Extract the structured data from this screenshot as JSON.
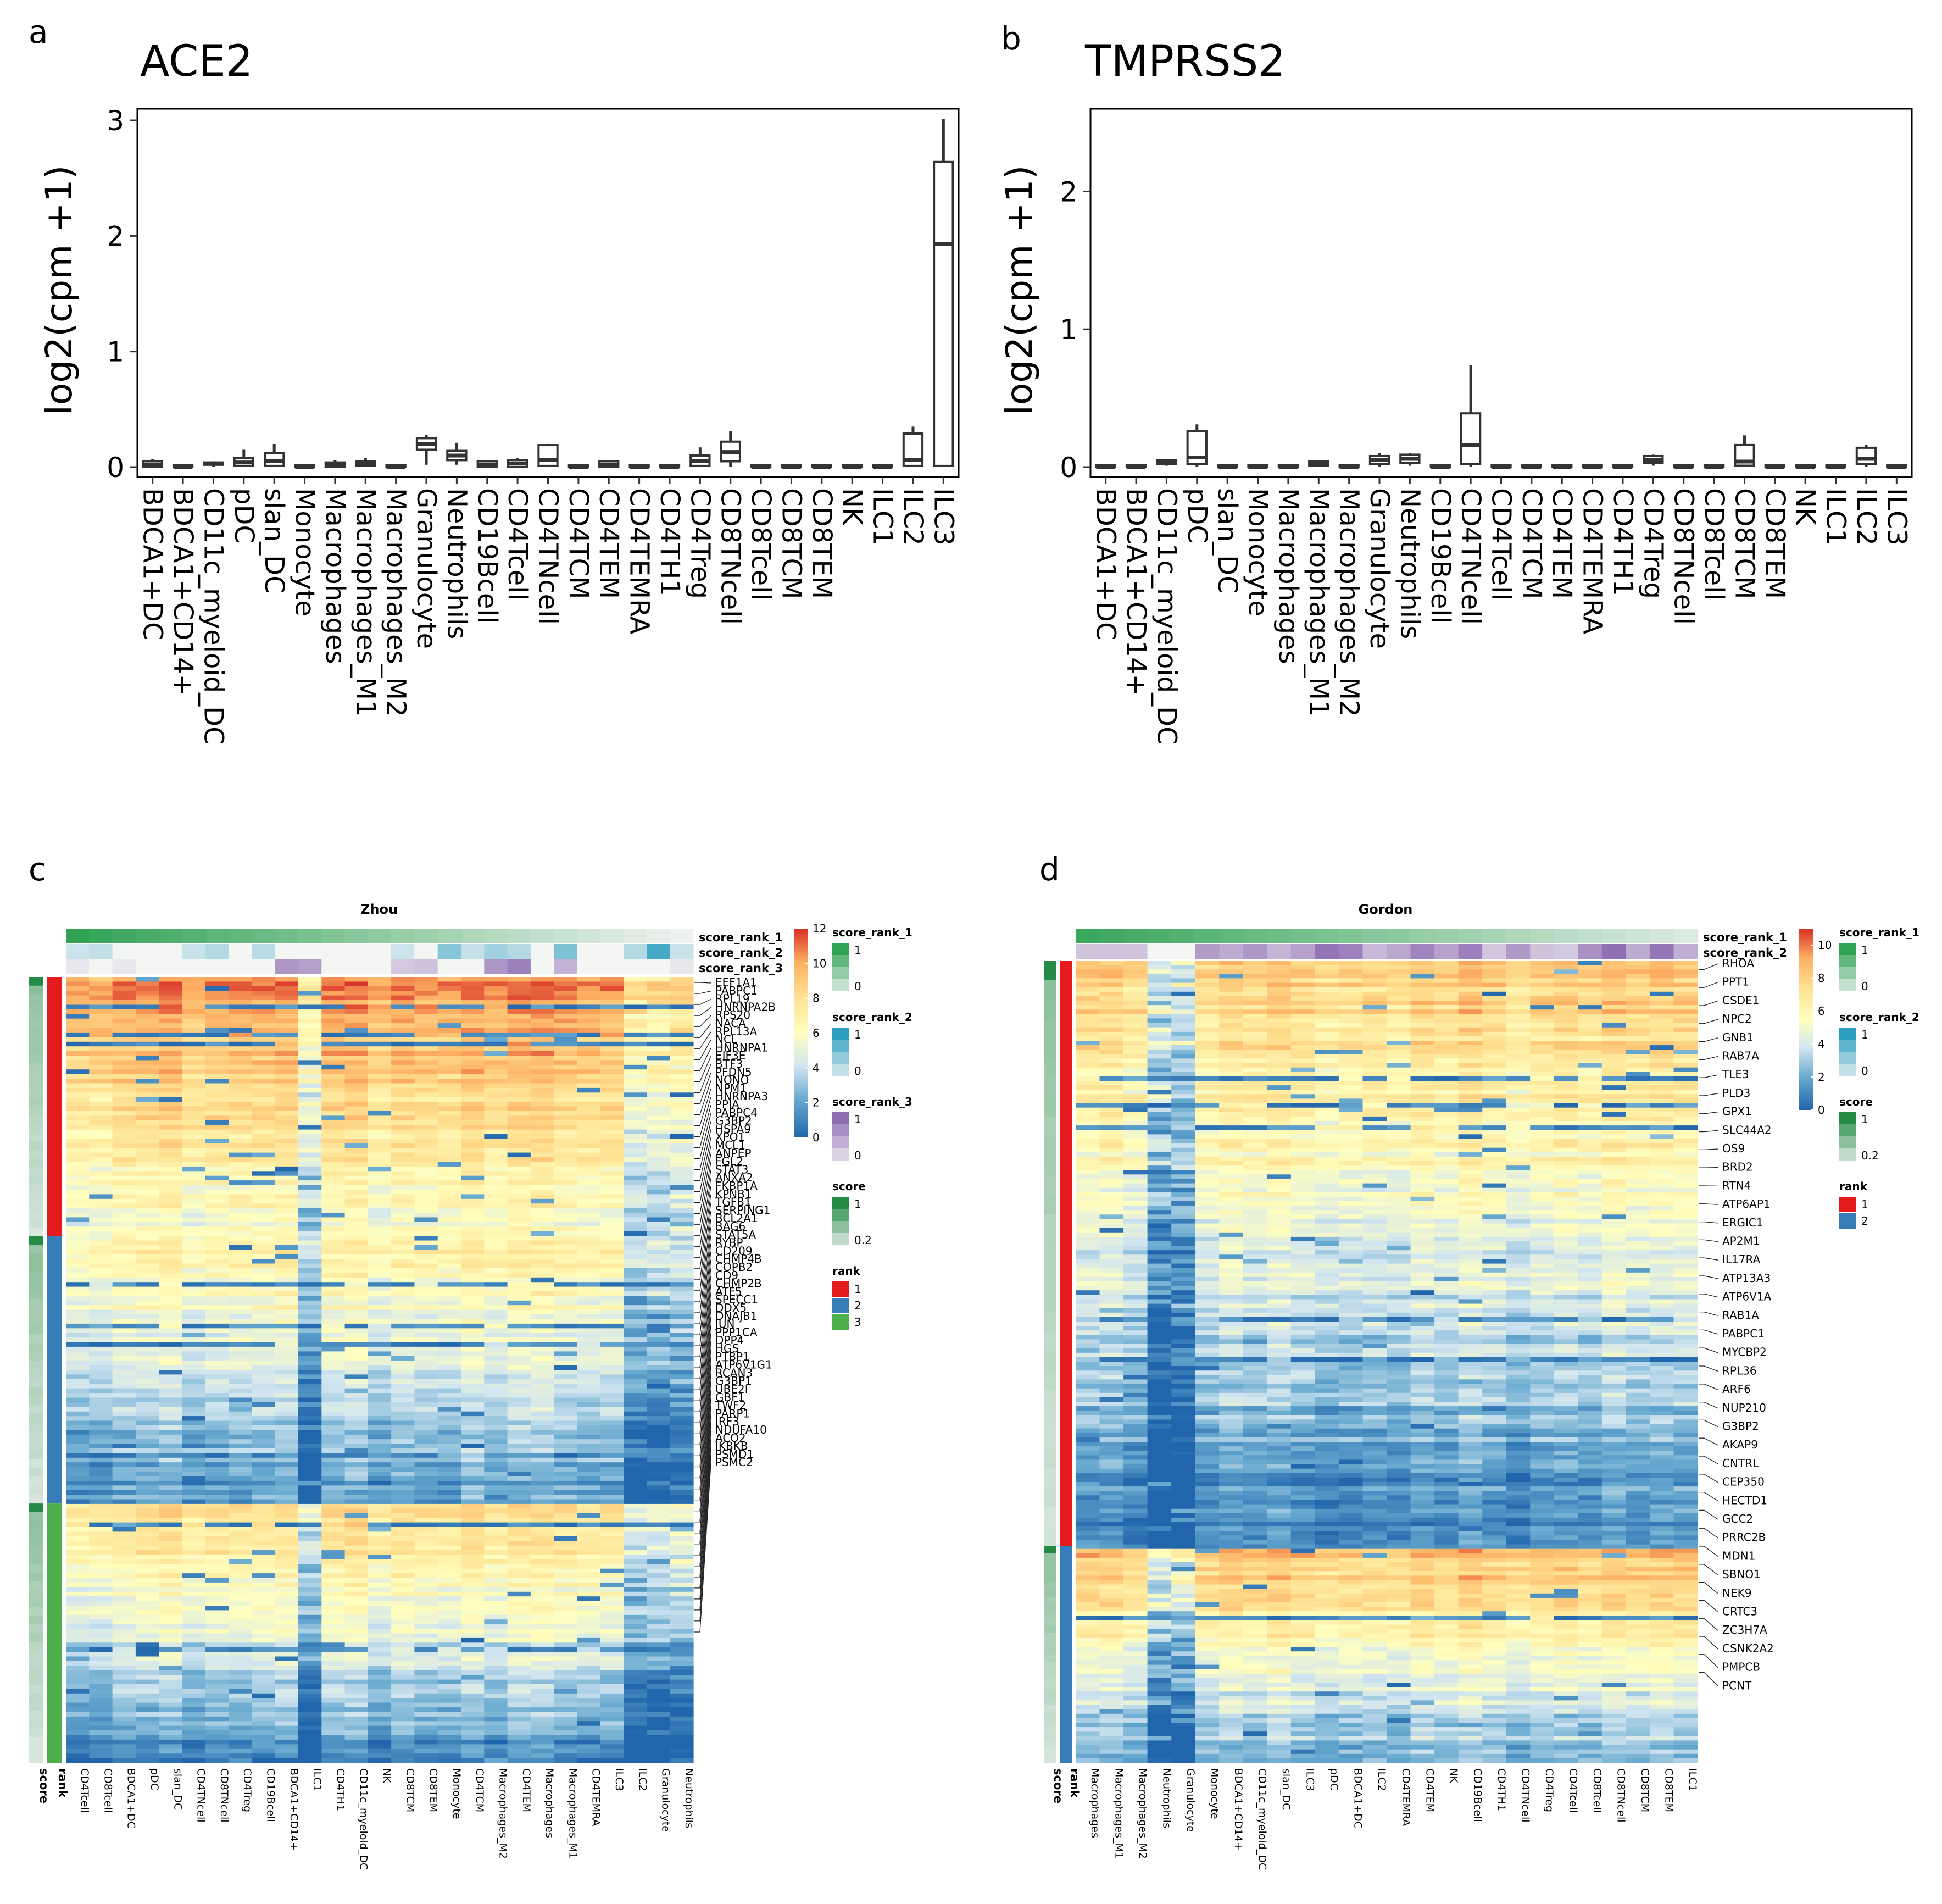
{
  "chart_data": [
    {
      "panel": "a",
      "type": "box",
      "title": "ACE2",
      "ylabel": "log2(cpm +1)",
      "ylim": [
        0,
        3.1
      ],
      "yticks": [
        0,
        1,
        2,
        3
      ],
      "grid": false,
      "categories": [
        "BDCA1+DC",
        "BDCA1+CD14+",
        "CD11c_myeloid_DC",
        "pDC",
        "slan_DC",
        "Monocyte",
        "Macrophages",
        "Macrophages_M1",
        "Macrophages_M2",
        "Granulocyte",
        "Neutrophils",
        "CD19Bcell",
        "CD4Tcell",
        "CD4TNcell",
        "CD4TCM",
        "CD4TEM",
        "CD4TEMRA",
        "CD4TH1",
        "CD4Treg",
        "CD8TNcell",
        "CD8Tcell",
        "CD8TCM",
        "CD8TEM",
        "NK",
        "ILC1",
        "ILC2",
        "ILC3"
      ],
      "boxes": [
        {
          "min": 0,
          "q1": 0.0,
          "median": 0.02,
          "q3": 0.05,
          "max": 0.07
        },
        {
          "min": 0,
          "q1": 0.0,
          "median": 0.0,
          "q3": 0.01,
          "max": 0.02
        },
        {
          "min": 0,
          "q1": 0.02,
          "median": 0.03,
          "q3": 0.04,
          "max": 0.05
        },
        {
          "min": 0,
          "q1": 0.01,
          "median": 0.04,
          "q3": 0.08,
          "max": 0.15
        },
        {
          "min": 0,
          "q1": 0.01,
          "median": 0.05,
          "q3": 0.12,
          "max": 0.2
        },
        {
          "min": 0,
          "q1": 0.0,
          "median": 0.0,
          "q3": 0.01,
          "max": 0.01
        },
        {
          "min": 0,
          "q1": 0.0,
          "median": 0.02,
          "q3": 0.04,
          "max": 0.06
        },
        {
          "min": 0,
          "q1": 0.01,
          "median": 0.03,
          "q3": 0.05,
          "max": 0.08
        },
        {
          "min": 0,
          "q1": 0.0,
          "median": 0.0,
          "q3": 0.01,
          "max": 0.01
        },
        {
          "min": 0.02,
          "q1": 0.15,
          "median": 0.2,
          "q3": 0.25,
          "max": 0.28
        },
        {
          "min": 0.02,
          "q1": 0.06,
          "median": 0.1,
          "q3": 0.14,
          "max": 0.21
        },
        {
          "min": 0,
          "q1": 0.0,
          "median": 0.02,
          "q3": 0.05,
          "max": 0.06
        },
        {
          "min": 0,
          "q1": 0.0,
          "median": 0.03,
          "q3": 0.06,
          "max": 0.08
        },
        {
          "min": 0,
          "q1": 0.01,
          "median": 0.06,
          "q3": 0.19,
          "max": 0.2
        },
        {
          "min": 0,
          "q1": 0.0,
          "median": 0.0,
          "q3": 0.01,
          "max": 0.02
        },
        {
          "min": 0,
          "q1": 0.0,
          "median": 0.02,
          "q3": 0.05,
          "max": 0.06
        },
        {
          "min": 0,
          "q1": 0.0,
          "median": 0.0,
          "q3": 0.01,
          "max": 0.01
        },
        {
          "min": 0,
          "q1": 0.0,
          "median": 0.0,
          "q3": 0.01,
          "max": 0.01
        },
        {
          "min": 0,
          "q1": 0.01,
          "median": 0.05,
          "q3": 0.1,
          "max": 0.17
        },
        {
          "min": 0,
          "q1": 0.05,
          "median": 0.13,
          "q3": 0.22,
          "max": 0.31
        },
        {
          "min": 0,
          "q1": 0.0,
          "median": 0.0,
          "q3": 0.01,
          "max": 0.01
        },
        {
          "min": 0,
          "q1": 0.0,
          "median": 0.0,
          "q3": 0.01,
          "max": 0.01
        },
        {
          "min": 0,
          "q1": 0.0,
          "median": 0.0,
          "q3": 0.01,
          "max": 0.01
        },
        {
          "min": 0,
          "q1": 0.0,
          "median": 0.0,
          "q3": 0.01,
          "max": 0.01
        },
        {
          "min": 0,
          "q1": 0.0,
          "median": 0.0,
          "q3": 0.01,
          "max": 0.01
        },
        {
          "min": 0,
          "q1": 0.01,
          "median": 0.06,
          "q3": 0.29,
          "max": 0.35
        },
        {
          "min": 0,
          "q1": 0.01,
          "median": 1.93,
          "q3": 2.64,
          "max": 3.01
        }
      ]
    },
    {
      "panel": "b",
      "type": "box",
      "title": "TMPRSS2",
      "ylabel": "log2(cpm +1)",
      "ylim": [
        0,
        2.6
      ],
      "yticks": [
        0,
        1,
        2
      ],
      "grid": false,
      "categories": [
        "BDCA1+DC",
        "BDCA1+CD14+",
        "CD11c_myeloid_DC",
        "pDC",
        "slan_DC",
        "Monocyte",
        "Macrophages",
        "Macrophages_M1",
        "Macrophages_M2",
        "Granulocyte",
        "Neutrophils",
        "CD19Bcell",
        "CD4TNcell",
        "CD4Tcell",
        "CD4TCM",
        "CD4TEM",
        "CD4TEMRA",
        "CD4TH1",
        "CD4Treg",
        "CD8TNcell",
        "CD8Tcell",
        "CD8TCM",
        "CD8TEM",
        "NK",
        "ILC1",
        "ILC2",
        "ILC3"
      ],
      "boxes": [
        {
          "min": 0,
          "q1": 0.0,
          "median": 0.0,
          "q3": 0.01,
          "max": 0.01
        },
        {
          "min": 0,
          "q1": 0.0,
          "median": 0.0,
          "q3": 0.01,
          "max": 0.01
        },
        {
          "min": 0.01,
          "q1": 0.02,
          "median": 0.03,
          "q3": 0.05,
          "max": 0.06
        },
        {
          "min": 0,
          "q1": 0.02,
          "median": 0.07,
          "q3": 0.26,
          "max": 0.31
        },
        {
          "min": 0,
          "q1": 0.0,
          "median": 0.0,
          "q3": 0.01,
          "max": 0.01
        },
        {
          "min": 0,
          "q1": 0.0,
          "median": 0.0,
          "q3": 0.01,
          "max": 0.01
        },
        {
          "min": 0,
          "q1": 0.0,
          "median": 0.0,
          "q3": 0.01,
          "max": 0.01
        },
        {
          "min": 0,
          "q1": 0.01,
          "median": 0.02,
          "q3": 0.04,
          "max": 0.05
        },
        {
          "min": 0,
          "q1": 0.0,
          "median": 0.0,
          "q3": 0.01,
          "max": 0.01
        },
        {
          "min": 0,
          "q1": 0.02,
          "median": 0.05,
          "q3": 0.08,
          "max": 0.1
        },
        {
          "min": 0.01,
          "q1": 0.03,
          "median": 0.06,
          "q3": 0.09,
          "max": 0.1
        },
        {
          "min": 0,
          "q1": 0.0,
          "median": 0.0,
          "q3": 0.01,
          "max": 0.01
        },
        {
          "min": 0,
          "q1": 0.02,
          "median": 0.16,
          "q3": 0.39,
          "max": 0.74
        },
        {
          "min": 0,
          "q1": 0.0,
          "median": 0.0,
          "q3": 0.01,
          "max": 0.01
        },
        {
          "min": 0,
          "q1": 0.0,
          "median": 0.0,
          "q3": 0.01,
          "max": 0.01
        },
        {
          "min": 0,
          "q1": 0.0,
          "median": 0.0,
          "q3": 0.01,
          "max": 0.01
        },
        {
          "min": 0,
          "q1": 0.0,
          "median": 0.0,
          "q3": 0.01,
          "max": 0.01
        },
        {
          "min": 0,
          "q1": 0.0,
          "median": 0.0,
          "q3": 0.01,
          "max": 0.01
        },
        {
          "min": 0.01,
          "q1": 0.03,
          "median": 0.05,
          "q3": 0.08,
          "max": 0.09
        },
        {
          "min": 0,
          "q1": 0.0,
          "median": 0.0,
          "q3": 0.01,
          "max": 0.01
        },
        {
          "min": 0,
          "q1": 0.0,
          "median": 0.0,
          "q3": 0.01,
          "max": 0.01
        },
        {
          "min": 0,
          "q1": 0.01,
          "median": 0.04,
          "q3": 0.16,
          "max": 0.23
        },
        {
          "min": 0,
          "q1": 0.0,
          "median": 0.0,
          "q3": 0.01,
          "max": 0.01
        },
        {
          "min": 0,
          "q1": 0.0,
          "median": 0.0,
          "q3": 0.01,
          "max": 0.01
        },
        {
          "min": 0,
          "q1": 0.0,
          "median": 0.0,
          "q3": 0.01,
          "max": 0.01
        },
        {
          "min": 0,
          "q1": 0.02,
          "median": 0.06,
          "q3": 0.14,
          "max": 0.16
        },
        {
          "min": 0,
          "q1": 0.0,
          "median": 0.0,
          "q3": 0.01,
          "max": 0.01
        }
      ]
    },
    {
      "panel": "c",
      "type": "heatmap",
      "title": "Zhou",
      "columns": [
        "CD4Tcell",
        "CD8Tcell",
        "BDCA1+DC",
        "pDC",
        "slan_DC",
        "CD4TNcell",
        "CD8TNcell",
        "CD4Treg",
        "CD19Bcell",
        "BDCA1+CD14+",
        "ILC1",
        "CD4TH1",
        "CD11c_myeloid_DC",
        "NK",
        "CD8TCM",
        "CD8TEM",
        "Monocyte",
        "CD4TCM",
        "Macrophages_M2",
        "CD4TEM",
        "Macrophages",
        "Macrophages_M1",
        "CD4TEMRA",
        "ILC3",
        "ILC2",
        "Granulocyte",
        "Neutrophils"
      ],
      "annotation_rows": [
        "score_rank_1",
        "score_rank_2",
        "score_rank_3"
      ],
      "row_annotations": [
        "score",
        "rank"
      ],
      "genes": [
        "EEF1A1",
        "PABPC1",
        "RPL19",
        "HNRNPA2B",
        "RPS20",
        "NACA",
        "RPL13A",
        "NCL",
        "HNRNPA1",
        "EIF3E",
        "BTF3",
        "PFDN5",
        "NONO",
        "NPM1",
        "HNRNPA3",
        "PPIA",
        "PABPC4",
        "G3BP2",
        "HSPA9",
        "XPO1",
        "MCL1",
        "ANPEP",
        "FGL2",
        "STAT3",
        "ANXA2",
        "FKBP1A",
        "KPNB1",
        "TGFB1",
        "SERPING1",
        "BCL2A1",
        "BAG6",
        "STAT5A",
        "RYBP",
        "CD209",
        "CHMP4B",
        "COPB2",
        "CD9",
        "CHMP2B",
        "ATF5",
        "SPECC1",
        "DDX5",
        "DNAJB1",
        "JUN",
        "PPP1CA",
        "DPP4",
        "HGS",
        "PTBP1",
        "ATP6V1G1",
        "RCAN3",
        "G3BP1",
        "UBE2I",
        "GBF1",
        "TWF2",
        "PARP1",
        "IRF3",
        "NDUFA10",
        "ACO2",
        "IKBKB",
        "PSMD1",
        "PSMC2"
      ],
      "color_scale": {
        "min": 0,
        "max": 12,
        "ticks": [
          0,
          2,
          4,
          6,
          8,
          10,
          12
        ]
      },
      "legends": [
        {
          "title": "score_rank_1",
          "labels": [
            "1",
            "0"
          ]
        },
        {
          "title": "score_rank_2",
          "labels": [
            "1",
            "0"
          ]
        },
        {
          "title": "score_rank_3",
          "labels": [
            "1",
            "0"
          ]
        },
        {
          "title": "score",
          "labels": [
            "1",
            "0.2"
          ]
        },
        {
          "title": "rank",
          "labels": [
            "1",
            "2",
            "3"
          ]
        }
      ]
    },
    {
      "panel": "d",
      "type": "heatmap",
      "title": "Gordon",
      "columns": [
        "Macrophages",
        "Macrophages_M1",
        "Macrophages_M2",
        "Neutrophils",
        "Granulocyte",
        "Monocyte",
        "BDCA1+CD14+",
        "CD11c_myeloid_DC",
        "slan_DC",
        "ILC3",
        "pDC",
        "BDCA1+DC",
        "ILC2",
        "CD4TEMRA",
        "CD4TEM",
        "NK",
        "CD19Bcell",
        "CD4TH1",
        "CD4TNcell",
        "CD4Treg",
        "CD4Tcell",
        "CD8Tcell",
        "CD8TNcell",
        "CD8TCM",
        "CD8TEM",
        "ILC1"
      ],
      "annotation_rows": [
        "score_rank_1",
        "score_rank_2"
      ],
      "row_annotations": [
        "score",
        "rank"
      ],
      "genes": [
        "RHOA",
        "PPT1",
        "CSDE1",
        "NPC2",
        "GNB1",
        "RAB7A",
        "TLE3",
        "PLD3",
        "GPX1",
        "SLC44A2",
        "OS9",
        "BRD2",
        "RTN4",
        "ATP6AP1",
        "ERGIC1",
        "AP2M1",
        "IL17RA",
        "ATP13A3",
        "ATP6V1A",
        "RAB1A",
        "PABPC1",
        "MYCBP2",
        "RPL36",
        "ARF6",
        "NUP210",
        "G3BP2",
        "AKAP9",
        "CNTRL",
        "CEP350",
        "HECTD1",
        "GCC2",
        "PRRC2B",
        "MDN1",
        "SBNO1",
        "NEK9",
        "CRTC3",
        "ZC3H7A",
        "CSNK2A2",
        "PMPCB",
        "PCNT"
      ],
      "color_scale": {
        "min": 0,
        "max": 11,
        "ticks": [
          0,
          2,
          4,
          6,
          8,
          10
        ]
      },
      "legends": [
        {
          "title": "score_rank_1",
          "labels": [
            "1",
            "0"
          ]
        },
        {
          "title": "score_rank_2",
          "labels": [
            "1",
            "0"
          ]
        },
        {
          "title": "score",
          "labels": [
            "1",
            "0.2"
          ]
        },
        {
          "title": "rank",
          "labels": [
            "1",
            "2"
          ]
        }
      ]
    }
  ],
  "panel_letters": [
    "a",
    "b",
    "c",
    "d"
  ],
  "colors": {
    "heat_low": "#2166ac",
    "heat_mid_low": "#d1e5f0",
    "heat_mid": "#ffffbf",
    "heat_mid_high": "#fdae61",
    "heat_high": "#d73027",
    "rank_1": "#e41a1c",
    "rank_2": "#377eb8",
    "rank_3": "#4daf4a",
    "score_rank_1": "#31a354",
    "score_rank_2": "#2c9fbf",
    "score_rank_3": "#8c6bb1",
    "score": "#238b45"
  }
}
